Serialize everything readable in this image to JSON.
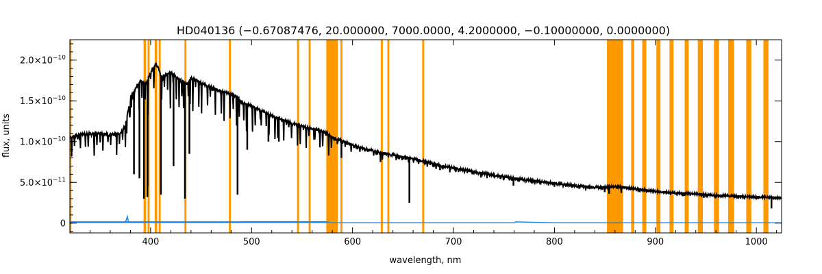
{
  "chart_data": {
    "type": "line",
    "title": "HD040136   (−0.67087476, 20.000000, 7000.0000, 4.2000000, −0.10000000, 0.0000000)",
    "xlabel": "wavelength, nm",
    "ylabel": "flux, units",
    "xlim": [
      320,
      1025
    ],
    "ylim": [
      -1.2e-11,
      2.25e-10
    ],
    "x_ticks": [
      400,
      500,
      600,
      700,
      800,
      900,
      1000
    ],
    "y_ticks": [
      {
        "value": 0,
        "label": "0",
        "mantissa": "0",
        "exponent": ""
      },
      {
        "value": 5e-11,
        "label": "5.0×10⁻¹¹",
        "mantissa": "5.0×10",
        "exponent": "−11"
      },
      {
        "value": 1e-10,
        "label": "1.0×10⁻¹⁰",
        "mantissa": "1.0×10",
        "exponent": "−10"
      },
      {
        "value": 1.5e-10,
        "label": "1.5×10⁻¹⁰",
        "mantissa": "1.5×10",
        "exponent": "−10"
      },
      {
        "value": 2e-10,
        "label": "2.0×10⁻¹⁰",
        "mantissa": "2.0×10",
        "exponent": "−10"
      }
    ],
    "grid": false,
    "colors": {
      "flux": "#000000",
      "error": "#1e88e5",
      "mask": "#ff9900"
    },
    "series": [
      {
        "role": "flux",
        "x": [
          320,
          330,
          340,
          350,
          360,
          370,
          375,
          378,
          380,
          385,
          390,
          395,
          400,
          405,
          408,
          410,
          415,
          420,
          425,
          430,
          434,
          436,
          440,
          445,
          450,
          460,
          470,
          480,
          486,
          490,
          500,
          510,
          520,
          530,
          540,
          550,
          560,
          570,
          575,
          580,
          590,
          600,
          610,
          620,
          630,
          640,
          650,
          656,
          660,
          670,
          680,
          690,
          700,
          720,
          740,
          760,
          780,
          800,
          820,
          840,
          850,
          860,
          870,
          880,
          900,
          920,
          940,
          960,
          980,
          1000,
          1010,
          1025
        ],
        "y": [
          1.05e-10,
          1.09e-10,
          1.1e-10,
          1.1e-10,
          1.09e-10,
          1.1e-10,
          1.2e-10,
          1.4e-10,
          1.55e-10,
          1.65e-10,
          1.75e-10,
          1.7e-10,
          1.85e-10,
          1.95e-10,
          1.9e-10,
          1.8e-10,
          1.82e-10,
          1.85e-10,
          1.8e-10,
          1.75e-10,
          1.72e-10,
          1.7e-10,
          1.78e-10,
          1.76e-10,
          1.72e-10,
          1.67e-10,
          1.62e-10,
          1.58e-10,
          1.55e-10,
          1.48e-10,
          1.44e-10,
          1.38e-10,
          1.32e-10,
          1.27e-10,
          1.23e-10,
          1.19e-10,
          1.16e-10,
          1.13e-10,
          1.1e-10,
          1.05e-10,
          1.01e-10,
          9.6e-11,
          9.2e-11,
          8.9e-11,
          8.6e-11,
          8.4e-11,
          8.1e-11,
          8e-11,
          7.9e-11,
          7.6e-11,
          7.3e-11,
          7e-11,
          6.8e-11,
          6.3e-11,
          5.9e-11,
          5.5e-11,
          5.2e-11,
          4.9e-11,
          4.6e-11,
          4.4e-11,
          4.4e-11,
          4.5e-11,
          4.4e-11,
          4.2e-11,
          3.9e-11,
          3.7e-11,
          3.6e-11,
          3.4e-11,
          3.3e-11,
          3.2e-11,
          3.2e-11,
          3.1e-11
        ]
      },
      {
        "role": "flux-absorption-lines",
        "x": [
          383.5,
          388.9,
          393.4,
          396.8,
          397.0,
          410.2,
          422.7,
          434.0,
          438.4,
          486.1,
          495.7,
          516.7,
          527.0,
          589.0,
          627.7,
          656.3,
          686.7,
          759.4,
          822.7,
          849.8,
          854.2,
          866.2,
          927.0,
          948.0,
          1000.0,
          1015.0
        ],
        "y": [
          6e-11,
          5.5e-11,
          3e-11,
          3.2e-11,
          4.5e-11,
          3.5e-11,
          7e-11,
          3e-11,
          8.5e-11,
          3.5e-11,
          9e-11,
          1e-10,
          1e-10,
          8e-11,
          7.5e-11,
          2.5e-11,
          6.5e-11,
          4.6e-11,
          4.3e-11,
          3.8e-11,
          3.6e-11,
          3.7e-11,
          3.3e-11,
          3.1e-11,
          2.9e-11,
          1.8e-11
        ]
      },
      {
        "role": "error",
        "x": [
          320,
          375,
          377,
          378,
          380,
          400,
          450,
          500,
          550,
          575,
          580,
          600,
          700,
          760,
          762,
          800,
          900,
          1025
        ],
        "y": [
          1e-12,
          1e-12,
          8e-12,
          1e-12,
          1e-12,
          1e-12,
          1e-12,
          1.5e-12,
          1.5e-12,
          1.5e-12,
          4e-13,
          4e-13,
          4e-13,
          4e-13,
          1.5e-12,
          4e-13,
          4e-13,
          4e-13
        ]
      }
    ],
    "masked_regions": [
      [
        320,
        321.5
      ],
      [
        393,
        395.5
      ],
      [
        397,
        399
      ],
      [
        404,
        406.5
      ],
      [
        408,
        410
      ],
      [
        433.5,
        435.5
      ],
      [
        477.5,
        479.5
      ],
      [
        545,
        547
      ],
      [
        556.5,
        558.5
      ],
      [
        574,
        585.5
      ],
      [
        588,
        590
      ],
      [
        628,
        630
      ],
      [
        634.5,
        636.5
      ],
      [
        669,
        671
      ],
      [
        852,
        868
      ],
      [
        876,
        879
      ],
      [
        887,
        891
      ],
      [
        901,
        905
      ],
      [
        914,
        918
      ],
      [
        929,
        933
      ],
      [
        942,
        947
      ],
      [
        958,
        963
      ],
      [
        972,
        978
      ],
      [
        990,
        995
      ],
      [
        1007,
        1012
      ]
    ]
  }
}
